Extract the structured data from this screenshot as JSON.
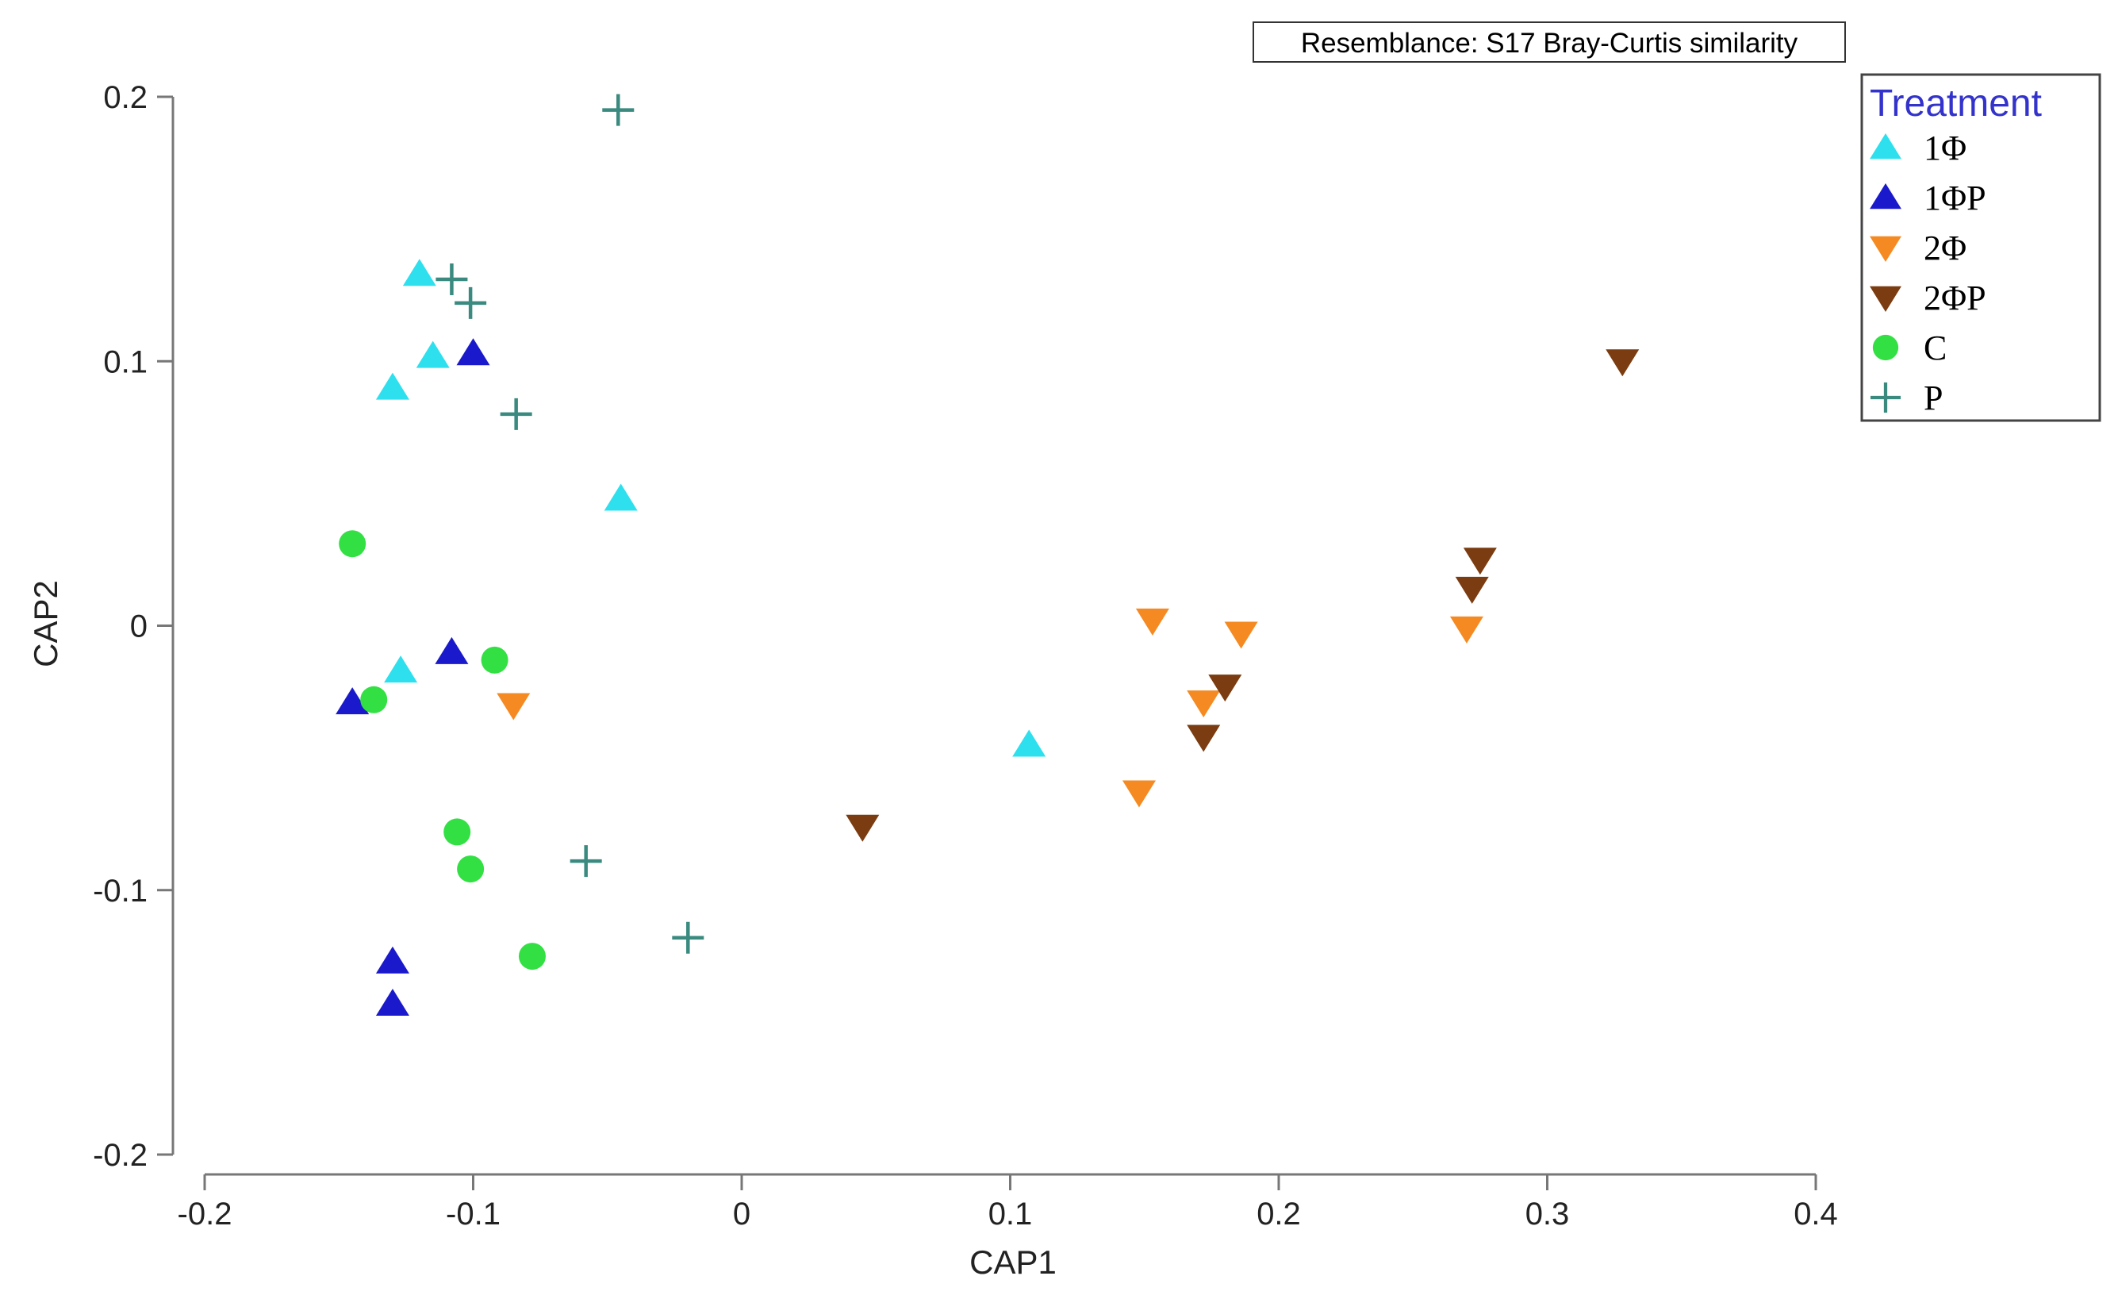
{
  "chart_data": {
    "type": "scatter",
    "annotation": "Resemblance: S17 Bray-Curtis similarity",
    "xlabel": "CAP1",
    "ylabel": "CAP2",
    "xlim": [
      -0.2,
      0.4
    ],
    "ylim": [
      -0.2,
      0.2
    ],
    "x_ticks": [
      -0.2,
      -0.1,
      0,
      0.1,
      0.2,
      0.3,
      0.4
    ],
    "x_tick_labels": [
      "-0.2",
      "-0.1",
      "0",
      "0.1",
      "0.2",
      "0.3",
      "0.4"
    ],
    "y_ticks": [
      -0.2,
      -0.1,
      0,
      0.1,
      0.2
    ],
    "y_tick_labels": [
      "-0.2",
      "-0.1",
      "0",
      "0.1",
      "0.2"
    ],
    "grid": false,
    "legend_title": "Treatment",
    "legend_position": "top-right",
    "series": [
      {
        "name": "1Φ",
        "marker": "triangle-up",
        "color": "#2ee0ee",
        "points": [
          [
            -0.12,
            0.133
          ],
          [
            -0.115,
            0.102
          ],
          [
            -0.13,
            0.09
          ],
          [
            -0.045,
            0.048
          ],
          [
            -0.127,
            -0.017
          ],
          [
            0.107,
            -0.045
          ]
        ]
      },
      {
        "name": "1ΦP",
        "marker": "triangle-up",
        "color": "#1a1acc",
        "points": [
          [
            -0.1,
            0.103
          ],
          [
            -0.108,
            -0.01
          ],
          [
            -0.145,
            -0.029
          ],
          [
            -0.13,
            -0.127
          ],
          [
            -0.13,
            -0.143
          ]
        ]
      },
      {
        "name": "2Φ",
        "marker": "triangle-down",
        "color": "#f58a22",
        "points": [
          [
            -0.085,
            -0.03
          ],
          [
            0.153,
            0.002
          ],
          [
            0.186,
            -0.003
          ],
          [
            0.172,
            -0.029
          ],
          [
            0.148,
            -0.063
          ],
          [
            0.27,
            -0.001
          ]
        ]
      },
      {
        "name": "2ΦP",
        "marker": "triangle-down",
        "color": "#7a3c10",
        "points": [
          [
            0.045,
            -0.076
          ],
          [
            0.172,
            -0.042
          ],
          [
            0.18,
            -0.023
          ],
          [
            0.272,
            0.014
          ],
          [
            0.275,
            0.025
          ],
          [
            0.328,
            0.1
          ]
        ]
      },
      {
        "name": "C",
        "marker": "circle",
        "color": "#33e044",
        "points": [
          [
            -0.145,
            0.031
          ],
          [
            -0.137,
            -0.028
          ],
          [
            -0.092,
            -0.013
          ],
          [
            -0.106,
            -0.078
          ],
          [
            -0.101,
            -0.092
          ],
          [
            -0.078,
            -0.125
          ]
        ]
      },
      {
        "name": "P",
        "marker": "plus",
        "color": "#3a8a80",
        "points": [
          [
            -0.046,
            0.195
          ],
          [
            -0.108,
            0.131
          ],
          [
            -0.101,
            0.122
          ],
          [
            -0.084,
            0.08
          ],
          [
            -0.058,
            -0.089
          ],
          [
            -0.02,
            -0.118
          ]
        ]
      }
    ]
  }
}
